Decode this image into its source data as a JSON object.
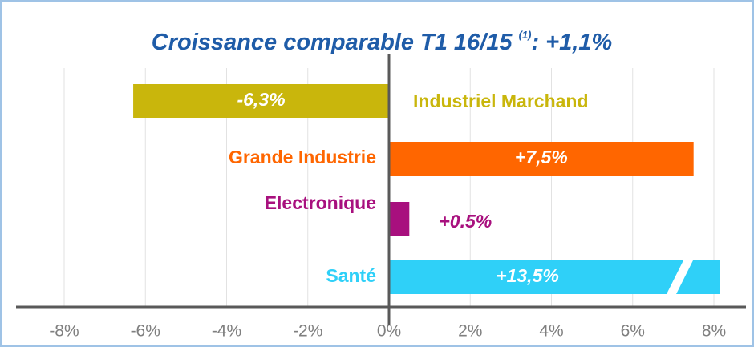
{
  "chart_data": {
    "type": "barh",
    "title": "Croissance comparable T1 16/15",
    "title_note": "(1)",
    "title_suffix": ": +1,1%",
    "categories": [
      "Industriel Marchand",
      "Grande Industrie",
      "Electronique",
      "Santé"
    ],
    "values": [
      -6.3,
      7.5,
      0.5,
      13.5
    ],
    "value_labels": [
      "-6,3%",
      "+7,5%",
      "+0.5%",
      "+13,5%"
    ],
    "colors": [
      "#c9b60c",
      "#ff6600",
      "#a8107e",
      "#2fd0f8"
    ],
    "xlim": [
      -8,
      8
    ],
    "xticks": [
      {
        "value": -8,
        "label": "-8%"
      },
      {
        "value": -6,
        "label": "-6%"
      },
      {
        "value": -4,
        "label": "-4%"
      },
      {
        "value": -2,
        "label": "-2%"
      },
      {
        "value": 0,
        "label": "0%"
      },
      {
        "value": 2,
        "label": "2%"
      },
      {
        "value": 4,
        "label": "4%"
      },
      {
        "value": 6,
        "label": "6%"
      },
      {
        "value": 8,
        "label": "8%"
      }
    ],
    "grid": true
  }
}
